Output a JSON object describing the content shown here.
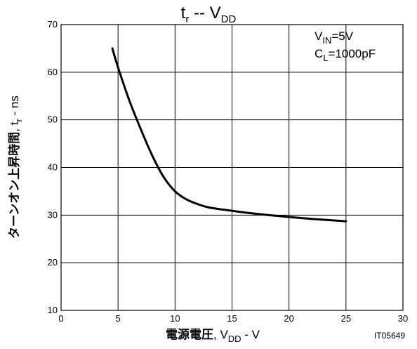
{
  "chart_data": {
    "type": "line",
    "title_main": "t",
    "title_sub": "r",
    "title_sep": " -- ",
    "title_var": "V",
    "title_var_sub": "DD",
    "conditions": [
      {
        "main": "V",
        "sub": "IN",
        "rest": "=5V"
      },
      {
        "main": "C",
        "sub": "L",
        "rest": "=1000pF"
      }
    ],
    "xlabel": {
      "jp": "電源電圧",
      "comma": ", ",
      "main": "V",
      "sub": "DD",
      "unit": " - V"
    },
    "ylabel": {
      "jp": "ターンオン上昇時間",
      "comma": ", ",
      "main": "t",
      "sub": "r",
      "unit": " - ns"
    },
    "figure_code": "IT05649",
    "xlim": [
      0,
      30
    ],
    "ylim": [
      10,
      70
    ],
    "xticks": [
      0,
      5,
      10,
      15,
      20,
      25,
      30
    ],
    "yticks": [
      10,
      20,
      30,
      40,
      50,
      60,
      70
    ],
    "grid": true,
    "series": [
      {
        "x": [
          4.5,
          5,
          6,
          7,
          8,
          9,
          10,
          11,
          12,
          13,
          15,
          17,
          20,
          22,
          25
        ],
        "y": [
          65,
          61,
          54,
          48,
          42.5,
          38,
          35,
          33.3,
          32.3,
          31.6,
          30.9,
          30.3,
          29.6,
          29.2,
          28.7
        ]
      }
    ]
  }
}
